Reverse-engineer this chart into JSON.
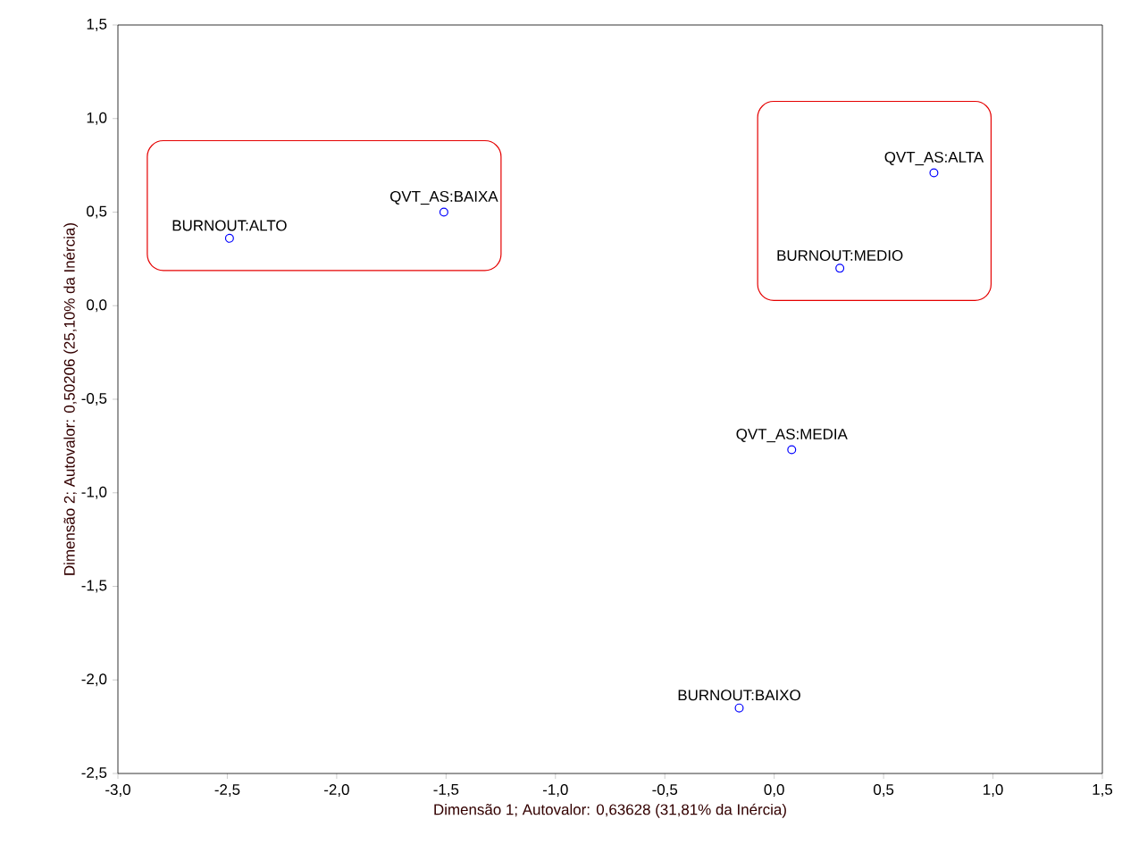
{
  "chart_data": {
    "type": "scatter",
    "xlabel": "Dimensão 1; Autovalor: 0,63628 (31,81% da Inércia)",
    "ylabel": "Dimensão 2; Autovalor: 0,50206 (25,10% da Inércia)",
    "series": [
      {
        "color": "#0000ff",
        "x": [
          -2.49,
          -1.51,
          0.73,
          0.3,
          0.08,
          -0.16
        ],
        "values": [
          0.36,
          0.5,
          0.71,
          0.2,
          -0.77,
          -2.15
        ]
      }
    ],
    "annotations": [
      {
        "text": "BURNOUT:ALTO",
        "x": -2.49,
        "y": 0.36
      },
      {
        "text": "QVT_AS:BAIXA",
        "x": -1.51,
        "y": 0.5
      },
      {
        "text": "QVT_AS:ALTA",
        "x": 0.73,
        "y": 0.71
      },
      {
        "text": "BURNOUT:MEDIO",
        "x": 0.3,
        "y": 0.2
      },
      {
        "text": "QVT_AS:MEDIA",
        "x": 0.08,
        "y": -0.77
      },
      {
        "text": "BURNOUT:BAIXO",
        "x": -0.16,
        "y": -2.15
      }
    ],
    "marker": "circle",
    "grid": false,
    "xlim": [
      -3.0,
      1.5
    ],
    "xticks": [
      {
        "value": -3.0,
        "label": "-3,0"
      },
      {
        "value": -2.5,
        "label": "-2,5"
      },
      {
        "value": -2.0,
        "label": "-2,0"
      },
      {
        "value": -1.5,
        "label": "-1,5"
      },
      {
        "value": -1.0,
        "label": "-1,0"
      },
      {
        "value": -0.5,
        "label": "-0,5"
      },
      {
        "value": 0.0,
        "label": "0,0"
      },
      {
        "value": 0.5,
        "label": "0,5"
      },
      {
        "value": 1.0,
        "label": "1,0"
      },
      {
        "value": 1.5,
        "label": "1,5"
      }
    ],
    "ylim": [
      -2.5,
      1.5
    ],
    "yticks": [
      {
        "value": -2.5,
        "label": "-2,5"
      },
      {
        "value": -2.0,
        "label": "-2,0"
      },
      {
        "value": -1.5,
        "label": "-1,5"
      },
      {
        "value": -1.0,
        "label": "-1,0"
      },
      {
        "value": -0.5,
        "label": "-0,5"
      },
      {
        "value": 0.0,
        "label": "0,0"
      },
      {
        "value": 0.5,
        "label": "0,5"
      },
      {
        "value": 1.0,
        "label": "1,0"
      },
      {
        "value": 1.5,
        "label": "1,5"
      }
    ]
  }
}
